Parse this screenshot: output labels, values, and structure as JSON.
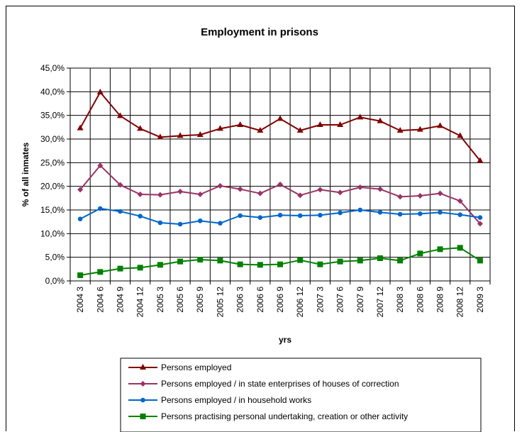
{
  "chart_data": {
    "type": "line",
    "title": "Employment in prisons",
    "xlabel": "yrs",
    "ylabel": "% of all inmates",
    "ylim": [
      0,
      45
    ],
    "y_ticks": [
      "0,0%",
      "5,0%",
      "10,0%",
      "15,0%",
      "20,0%",
      "25,0%",
      "30,0%",
      "35,0%",
      "40,0%",
      "45,0%"
    ],
    "y_tick_values": [
      0,
      5,
      10,
      15,
      20,
      25,
      30,
      35,
      40,
      45
    ],
    "grid": "horizontal and vertical",
    "legend_position": "bottom",
    "categories": [
      "2004 3",
      "2004 6",
      "2004 9",
      "2004 12",
      "2005 3",
      "2005 6",
      "2005 9",
      "2005 12",
      "2006 3",
      "2006 6",
      "2006 9",
      "2006 12",
      "2007 3",
      "2007 6",
      "2007 9",
      "2007 12",
      "2008 3",
      "2008 6",
      "2008 9",
      "2008 12",
      "2009 3"
    ],
    "series": [
      {
        "name": "Persons employed",
        "color": "#800000",
        "marker": "triangle",
        "values": [
          32.3,
          39.9,
          34.9,
          32.2,
          30.4,
          30.7,
          30.9,
          32.2,
          33.0,
          31.8,
          34.3,
          31.8,
          33.0,
          33.0,
          34.6,
          33.8,
          31.8,
          32.0,
          32.8,
          30.7,
          25.4
        ]
      },
      {
        "name": "Persons employed / in state enterprises of houses of correction",
        "color": "#993366",
        "marker": "diamond",
        "values": [
          19.3,
          24.4,
          20.3,
          18.3,
          18.2,
          18.9,
          18.3,
          20.1,
          19.4,
          18.5,
          20.4,
          18.1,
          19.3,
          18.7,
          19.8,
          19.4,
          17.8,
          18.0,
          18.5,
          16.9,
          12.1
        ]
      },
      {
        "name": "Persons employed / in household works",
        "color": "#0066cc",
        "marker": "circle",
        "values": [
          13.1,
          15.3,
          14.7,
          13.7,
          12.3,
          12.0,
          12.7,
          12.2,
          13.8,
          13.4,
          13.9,
          13.8,
          13.9,
          14.4,
          15.0,
          14.5,
          14.1,
          14.2,
          14.5,
          14.0,
          13.4
        ]
      },
      {
        "name": "Persons practising personal undertaking, creation or other activity",
        "color": "#008000",
        "marker": "square",
        "values": [
          1.2,
          1.9,
          2.6,
          2.8,
          3.4,
          4.1,
          4.5,
          4.3,
          3.5,
          3.4,
          3.5,
          4.4,
          3.5,
          4.1,
          4.3,
          4.8,
          4.3,
          5.8,
          6.7,
          7.0,
          4.3
        ]
      }
    ]
  }
}
